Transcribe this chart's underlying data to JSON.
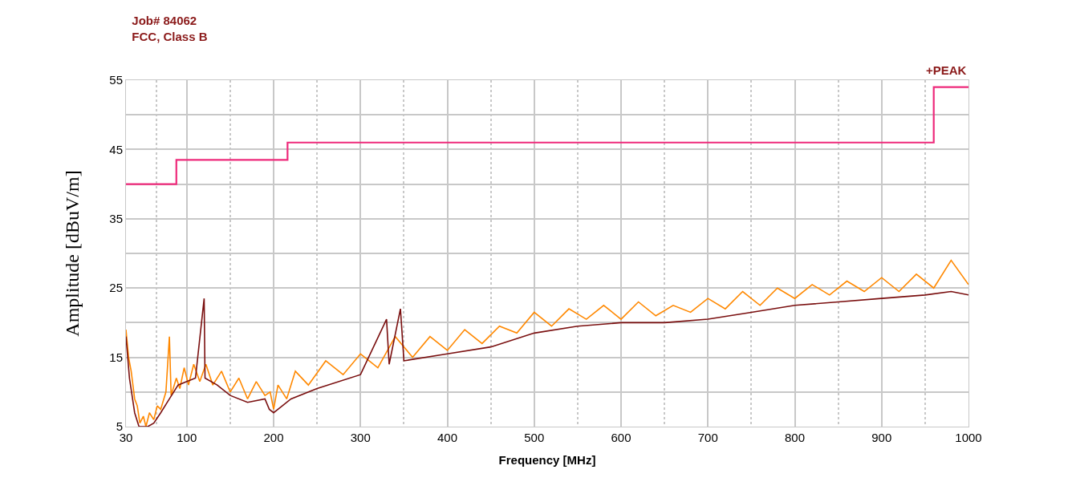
{
  "chart_data": {
    "type": "line",
    "title": "Job# 84062",
    "subtitle": "FCC, Class B",
    "xlabel": "Frequency [MHz]",
    "ylabel": "Amplitude [dBuV/m]",
    "annotations": [
      "+PEAK"
    ],
    "xlim": [
      30,
      1000
    ],
    "xticks": [
      30,
      100,
      200,
      300,
      400,
      500,
      600,
      700,
      800,
      900,
      1000
    ],
    "ylim": [
      5,
      55
    ],
    "yticks": [
      5,
      {
        "value": 10,
        "label": null
      },
      15,
      {
        "value": 20,
        "label": null
      },
      25,
      {
        "value": 30,
        "label": null
      },
      35,
      {
        "value": 40,
        "label": null
      },
      45,
      {
        "value": 50,
        "label": null
      },
      55
    ],
    "grid": true,
    "marker": "none",
    "line_style": "solid",
    "series": [
      {
        "color": "#ff8800",
        "x": [
          30,
          33,
          36,
          40,
          43,
          46,
          50,
          53,
          57,
          62,
          66,
          70,
          76,
          80,
          82,
          88,
          92,
          97,
          102,
          108,
          115,
          122,
          130,
          140,
          150,
          160,
          170,
          180,
          190,
          196,
          200,
          205,
          215,
          225,
          240,
          260,
          280,
          300,
          320,
          340,
          360,
          380,
          400,
          420,
          440,
          460,
          480,
          500,
          520,
          540,
          560,
          580,
          600,
          620,
          640,
          660,
          680,
          700,
          720,
          740,
          760,
          780,
          800,
          820,
          840,
          860,
          880,
          900,
          920,
          940,
          960,
          980,
          1000
        ],
        "values": [
          19,
          15,
          13,
          9,
          8,
          5.5,
          6.5,
          5,
          7,
          6,
          8,
          7.5,
          10,
          18,
          9.5,
          12,
          10.5,
          13.5,
          11,
          14,
          11.5,
          14,
          11,
          13,
          10,
          12,
          9,
          11.5,
          9.5,
          10,
          7.5,
          11,
          9,
          13,
          11,
          14.5,
          12.5,
          15.5,
          13.5,
          18,
          15,
          18,
          16,
          19,
          17,
          19.5,
          18.5,
          21.5,
          19.5,
          22,
          20.5,
          22.5,
          20.5,
          23,
          21,
          22.5,
          21.5,
          23.5,
          22,
          24.5,
          22.5,
          25,
          23.5,
          25.5,
          24,
          26,
          24.5,
          26.5,
          24.5,
          27,
          25,
          29,
          25.5
        ]
      },
      {
        "color": "#7a0f0f",
        "x": [
          30,
          34,
          40,
          45,
          50,
          55,
          62,
          70,
          80,
          90,
          100,
          110,
          120,
          121,
          135,
          150,
          170,
          190,
          195,
          200,
          220,
          250,
          300,
          330,
          333,
          346,
          350,
          400,
          450,
          500,
          550,
          600,
          650,
          700,
          750,
          800,
          850,
          900,
          950,
          980,
          1000
        ],
        "values": [
          18,
          12,
          7,
          5,
          5,
          5,
          5.5,
          7,
          9,
          11,
          11.5,
          12,
          23.5,
          12,
          11,
          9.5,
          8.5,
          9,
          7.5,
          7,
          9,
          10.5,
          12.5,
          20.5,
          14,
          22,
          14.5,
          15.5,
          16.5,
          18.5,
          19.5,
          20,
          20,
          20.5,
          21.5,
          22.5,
          23,
          23.5,
          24,
          24.5,
          24
        ]
      },
      {
        "type": "step",
        "color": "#ee2a7b",
        "x": [
          30,
          88,
          216,
          960,
          1000
        ],
        "values": [
          40,
          43.5,
          46,
          54,
          54
        ]
      }
    ]
  }
}
